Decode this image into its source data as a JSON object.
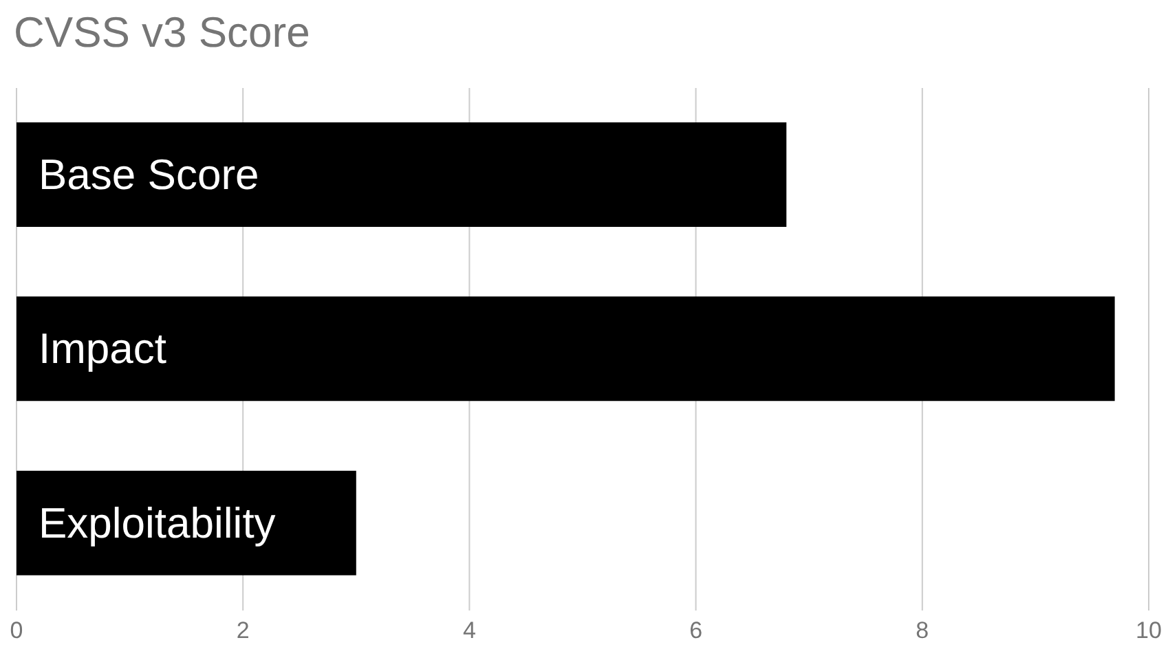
{
  "chart_data": {
    "type": "bar",
    "orientation": "horizontal",
    "title": "CVSS v3 Score",
    "categories": [
      "Base Score",
      "Impact",
      "Exploitability"
    ],
    "values": [
      6.8,
      9.7,
      3.0
    ],
    "color": "#000000",
    "xlim": [
      0,
      10
    ],
    "xticks": [
      0,
      2,
      4,
      6,
      8,
      10
    ],
    "grid": "x"
  }
}
